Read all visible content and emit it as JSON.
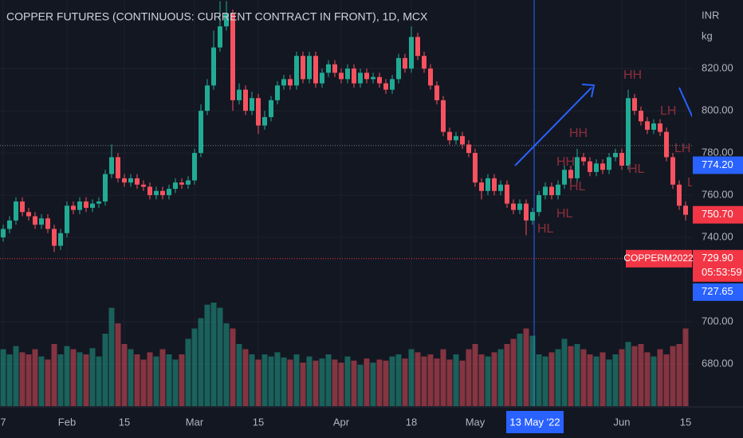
{
  "chart_data": {
    "type": "candlestick",
    "title": "COPPER FUTURES (CONTINUOUS: CURRENT CONTRACT IN FRONT), 1D, MCX",
    "currency": "INR",
    "unit": "kg",
    "categories": [
      "7",
      null,
      null,
      null,
      null,
      null,
      null,
      null,
      null,
      null,
      "Feb",
      null,
      null,
      null,
      null,
      null,
      null,
      null,
      null,
      "15",
      null,
      null,
      null,
      null,
      null,
      null,
      null,
      null,
      null,
      null,
      "Mar",
      null,
      null,
      null,
      null,
      null,
      null,
      null,
      null,
      null,
      "15",
      null,
      null,
      null,
      null,
      null,
      null,
      null,
      null,
      null,
      null,
      null,
      null,
      "Apr",
      null,
      null,
      null,
      null,
      null,
      null,
      null,
      null,
      null,
      null,
      "18",
      null,
      null,
      null,
      null,
      null,
      null,
      null,
      null,
      null,
      "May",
      null,
      null,
      null,
      null,
      null,
      null,
      null,
      null,
      "13 May '22",
      null,
      null,
      null,
      null,
      null,
      null,
      null,
      null,
      null,
      null,
      null,
      null,
      null,
      "Jun",
      null,
      null,
      null,
      null,
      null,
      null,
      null,
      null,
      null,
      "15"
    ],
    "crosshair": "13 May '22",
    "open": [
      740,
      744,
      748,
      757,
      752,
      750,
      746,
      749,
      744,
      736,
      742,
      755,
      753,
      757,
      754,
      756,
      757,
      770,
      778,
      768,
      766,
      768,
      765,
      764,
      760,
      762,
      760,
      763,
      766,
      765,
      767,
      780,
      800,
      812,
      830,
      840,
      846,
      805,
      810,
      800,
      806,
      793,
      797,
      805,
      812,
      815,
      812,
      826,
      815,
      826,
      813,
      818,
      822,
      818,
      815,
      820,
      813,
      818,
      815,
      816,
      813,
      810,
      815,
      825,
      820,
      835,
      826,
      820,
      812,
      805,
      790,
      786,
      788,
      784,
      780,
      766,
      762,
      768,
      762,
      765,
      756,
      753,
      756,
      748,
      752,
      760,
      764,
      760,
      765,
      772,
      768,
      778,
      776,
      771,
      775,
      772,
      778,
      780,
      774,
      806,
      800,
      795,
      791,
      794,
      790,
      778,
      765,
      755
    ],
    "high": [
      746,
      750,
      759,
      759,
      754,
      752,
      751,
      751,
      746,
      744,
      757,
      757,
      759,
      759,
      758,
      759,
      772,
      784,
      780,
      770,
      770,
      770,
      767,
      766,
      764,
      764,
      765,
      768,
      768,
      769,
      782,
      803,
      815,
      838,
      852,
      852,
      848,
      813,
      812,
      809,
      808,
      800,
      807,
      814,
      817,
      817,
      828,
      828,
      828,
      828,
      820,
      824,
      824,
      820,
      822,
      822,
      820,
      820,
      818,
      818,
      815,
      817,
      827,
      827,
      840,
      837,
      828,
      822,
      814,
      807,
      792,
      790,
      790,
      786,
      782,
      768,
      770,
      770,
      767,
      767,
      758,
      758,
      758,
      754,
      762,
      766,
      766,
      767,
      774,
      774,
      782,
      780,
      778,
      777,
      777,
      780,
      782,
      782,
      810,
      808,
      802,
      797,
      796,
      796,
      792,
      780,
      767,
      757
    ],
    "low": [
      738,
      742,
      746,
      750,
      748,
      744,
      744,
      742,
      733,
      734,
      740,
      751,
      751,
      752,
      752,
      754,
      755,
      768,
      766,
      764,
      764,
      763,
      762,
      758,
      758,
      758,
      758,
      761,
      763,
      763,
      765,
      778,
      798,
      810,
      828,
      838,
      800,
      803,
      798,
      798,
      789,
      791,
      795,
      803,
      810,
      810,
      810,
      813,
      813,
      811,
      811,
      816,
      816,
      813,
      813,
      811,
      811,
      813,
      813,
      811,
      808,
      808,
      813,
      818,
      818,
      824,
      818,
      810,
      803,
      788,
      784,
      784,
      782,
      778,
      764,
      758,
      760,
      760,
      760,
      754,
      751,
      751,
      741,
      746,
      750,
      758,
      758,
      758,
      763,
      766,
      766,
      774,
      769,
      769,
      770,
      770,
      776,
      772,
      772,
      798,
      793,
      789,
      789,
      788,
      776,
      763,
      753,
      748
    ],
    "close": [
      744,
      748,
      757,
      752,
      750,
      746,
      749,
      744,
      736,
      742,
      755,
      753,
      757,
      754,
      756,
      757,
      770,
      778,
      768,
      766,
      768,
      765,
      764,
      760,
      762,
      760,
      763,
      766,
      765,
      767,
      780,
      800,
      812,
      830,
      840,
      846,
      805,
      810,
      800,
      806,
      793,
      797,
      805,
      812,
      815,
      812,
      826,
      815,
      826,
      813,
      818,
      822,
      818,
      815,
      820,
      813,
      818,
      815,
      816,
      813,
      810,
      815,
      825,
      820,
      835,
      826,
      820,
      812,
      805,
      790,
      786,
      788,
      784,
      780,
      766,
      762,
      768,
      762,
      765,
      756,
      753,
      756,
      748,
      752,
      760,
      764,
      760,
      765,
      772,
      768,
      778,
      776,
      771,
      775,
      772,
      778,
      780,
      774,
      806,
      800,
      795,
      791,
      794,
      790,
      778,
      765,
      755,
      750.7
    ],
    "volume": [
      55,
      50,
      58,
      52,
      50,
      55,
      48,
      45,
      60,
      50,
      58,
      55,
      52,
      50,
      56,
      48,
      70,
      95,
      80,
      60,
      55,
      50,
      45,
      52,
      48,
      55,
      50,
      45,
      50,
      65,
      75,
      85,
      98,
      100,
      95,
      80,
      75,
      60,
      55,
      50,
      45,
      50,
      48,
      52,
      47,
      45,
      50,
      42,
      48,
      44,
      46,
      50,
      45,
      42,
      48,
      44,
      40,
      46,
      42,
      45,
      44,
      48,
      50,
      46,
      55,
      52,
      48,
      50,
      46,
      55,
      45,
      50,
      44,
      55,
      60,
      50,
      48,
      52,
      55,
      60,
      65,
      70,
      75,
      68,
      50,
      48,
      52,
      55,
      65,
      58,
      60,
      55,
      50,
      48,
      52,
      45,
      50,
      55,
      62,
      58,
      60,
      52,
      48,
      55,
      50,
      58,
      60,
      75
    ],
    "vlim": [
      0,
      100
    ],
    "ylim": [
      660,
      852.5
    ],
    "yticks": [
      {
        "value": 680,
        "label": "680.00"
      },
      {
        "value": 700,
        "label": "700.00"
      },
      {
        "value": 740,
        "label": "740.00"
      },
      {
        "value": 760,
        "label": "760.00"
      },
      {
        "value": 780,
        "label": "780.00"
      },
      {
        "value": 800,
        "label": "800.00"
      },
      {
        "value": 820,
        "label": "820.00"
      }
    ],
    "grid": true,
    "up_color": "#22ab94",
    "down_color": "#f7525f",
    "horizontal_line": 783.5,
    "price_labels": [
      {
        "value": 774.2,
        "label": "774.20",
        "color": "#2962ff"
      },
      {
        "value": 750.7,
        "label": "750.70",
        "color": "#f23645"
      },
      {
        "value": 729.9,
        "label": "729.90",
        "color": "#f23645",
        "name": "COPPERM2022",
        "timer": "05:53:59"
      },
      {
        "value": 727.65,
        "label": "727.65",
        "color": "#2962ff"
      }
    ],
    "annotations": [
      "HH",
      "LH",
      "LH",
      "HH",
      "HH",
      "HL",
      "HL",
      "HL",
      "HL",
      "L"
    ]
  }
}
